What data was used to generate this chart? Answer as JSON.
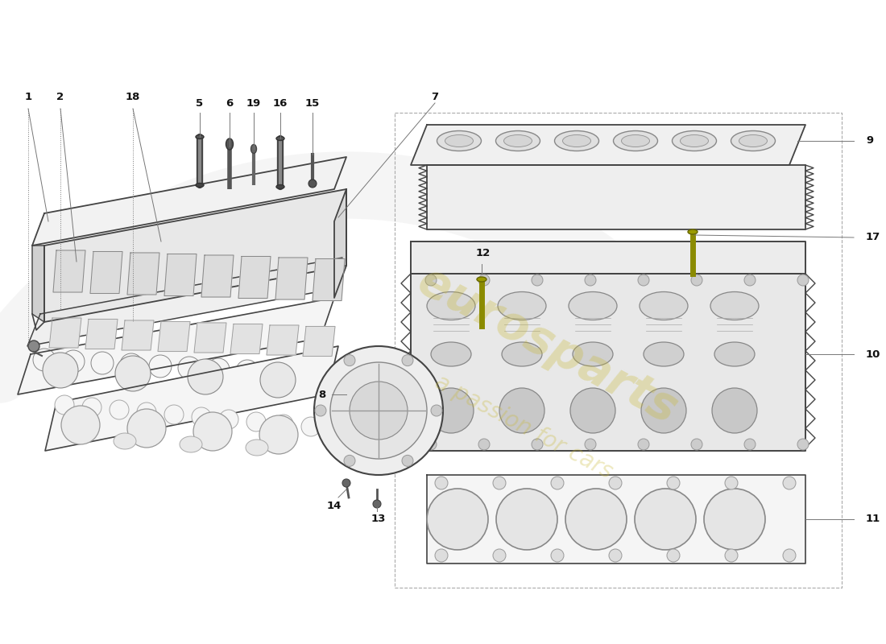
{
  "background_color": "#ffffff",
  "line_color": "#444444",
  "watermark_color": "#c8b830",
  "watermark_text1": "eurosparts",
  "watermark_text2": "a passion for cars",
  "dpi": 100,
  "figsize": [
    11.0,
    8.0
  ]
}
